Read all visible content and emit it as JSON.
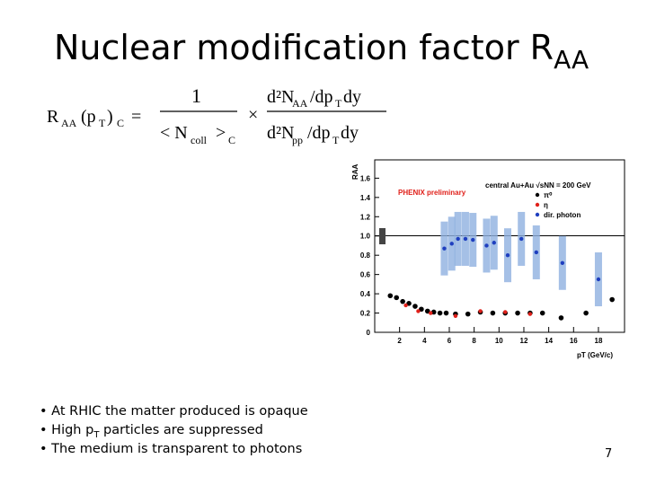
{
  "title": "Nuclear modification factor R",
  "title_sub": "AA",
  "formula": [
    "R",
    "AA",
    "(p",
    "T",
    ")",
    "C",
    "=",
    "1",
    "< N",
    "coll",
    ">",
    "C",
    "×",
    "d²N",
    "AA",
    "/dp",
    "T",
    "dy",
    "d²N",
    "pp",
    "/dp",
    "T",
    "dy"
  ],
  "bullets": [
    [
      "• At RHIC the matter produced is opaque"
    ],
    [
      "• High p",
      "T",
      " particles are suppressed"
    ],
    [
      "• The medium is transparent to photons"
    ]
  ],
  "page_number": "7",
  "chart_data": {
    "type": "scatter",
    "annotation": "PHENIX preliminary",
    "legend_title": "central Au+Au √sNN = 200 GeV",
    "x_label": "pT (GeV/c)",
    "y_label": "RAA",
    "xlim": [
      0,
      20.1
    ],
    "ylim": [
      0,
      1.79
    ],
    "xticks": [
      2,
      4,
      6,
      8,
      10,
      12,
      14,
      16,
      18
    ],
    "yticks": [
      0,
      0.2,
      0.4,
      0.6,
      0.8,
      {
        "value": 1,
        "label": "1.0"
      },
      1.2,
      1.4,
      1.6
    ],
    "series": [
      {
        "name": "π⁰",
        "color": "#000000",
        "x": [
          1.25,
          1.75,
          2.25,
          2.75,
          3.25,
          3.75,
          4.25,
          4.75,
          5.25,
          5.75,
          6.5,
          7.5,
          8.5,
          9.5,
          10.5,
          11.5,
          12.5,
          13.5,
          15,
          17,
          19.1
        ],
        "values": [
          0.38,
          0.36,
          0.32,
          0.3,
          0.27,
          0.24,
          0.22,
          0.21,
          0.2,
          0.2,
          0.19,
          0.19,
          0.21,
          0.2,
          0.2,
          0.2,
          0.2,
          0.2,
          0.15,
          0.2,
          0.34
        ]
      },
      {
        "name": "η",
        "color": "#e0201a",
        "x": [
          2.5,
          3.5,
          4.5,
          6.5,
          8.5,
          10.5,
          12.5
        ],
        "values": [
          0.28,
          0.22,
          0.2,
          0.17,
          0.22,
          0.21,
          0.19
        ]
      },
      {
        "name": "dir. photon",
        "color": "#1f3fbf",
        "x": [
          5.6,
          6.2,
          6.7,
          7.3,
          7.9,
          9.0,
          9.6,
          10.7,
          11.8,
          13.0,
          15.1,
          18.0
        ],
        "values": [
          0.87,
          0.92,
          0.97,
          0.97,
          0.96,
          0.9,
          0.93,
          0.8,
          0.97,
          0.83,
          0.72,
          0.55
        ]
      }
    ]
  }
}
